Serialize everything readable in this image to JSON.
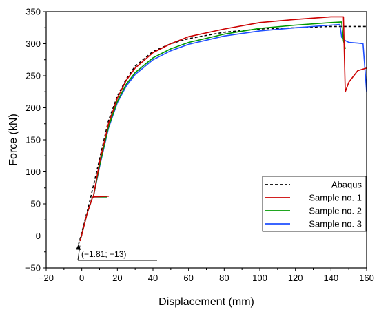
{
  "chart_data": {
    "type": "line",
    "xlabel": "Displacement (mm)",
    "ylabel": "Force (kN)",
    "xlim": [
      -20,
      160
    ],
    "ylim": [
      -50,
      350
    ],
    "xticks": [
      -20,
      0,
      20,
      40,
      60,
      80,
      100,
      120,
      140,
      160
    ],
    "yticks": [
      -50,
      0,
      50,
      100,
      150,
      200,
      250,
      300,
      350
    ],
    "grid": false,
    "legend_position": "bottom-right",
    "zero_line": 0,
    "annotation": {
      "text": "(−1.81; −13)",
      "point": [
        -1.81,
        -13
      ]
    },
    "series": [
      {
        "name": "Abaqus",
        "color": "#000000",
        "dash": "dashed",
        "x": [
          -1.81,
          0,
          5,
          10,
          15,
          20,
          25,
          30,
          40,
          50,
          60,
          80,
          100,
          120,
          140,
          150,
          160
        ],
        "y": [
          -13,
          5,
          60,
          120,
          180,
          218,
          245,
          265,
          288,
          300,
          308,
          318,
          323,
          325,
          327,
          327,
          327
        ]
      },
      {
        "name": "Sample no. 1",
        "color": "#cc0000",
        "dash": "solid",
        "x": [
          -1,
          0,
          3,
          6,
          6.5,
          15,
          6.5,
          10,
          15,
          20,
          25,
          30,
          40,
          50,
          60,
          80,
          100,
          120,
          140,
          147,
          148,
          150,
          155,
          160
        ],
        "y": [
          -8,
          2,
          35,
          60,
          61,
          62,
          61,
          115,
          175,
          215,
          243,
          262,
          286,
          300,
          311,
          323,
          333,
          338,
          342,
          342,
          225,
          240,
          258,
          262
        ]
      },
      {
        "name": "Sample no. 2",
        "color": "#009900",
        "dash": "solid",
        "x": [
          -1,
          0,
          3,
          6,
          6.5,
          14,
          6.5,
          10,
          15,
          20,
          25,
          30,
          40,
          50,
          60,
          80,
          100,
          120,
          140,
          146,
          147,
          148
        ],
        "y": [
          -8,
          2,
          35,
          60,
          61,
          61,
          61,
          110,
          170,
          210,
          237,
          255,
          278,
          292,
          302,
          315,
          324,
          329,
          333,
          334,
          305,
          292
        ]
      },
      {
        "name": "Sample no. 3",
        "color": "#1f4fff",
        "dash": "solid",
        "x": [
          -1,
          0,
          3,
          6,
          6.5,
          14,
          6.5,
          10,
          15,
          20,
          25,
          30,
          40,
          50,
          60,
          80,
          100,
          120,
          140,
          145,
          146,
          148,
          150,
          155,
          158,
          160
        ],
        "y": [
          -8,
          2,
          35,
          60,
          61,
          61,
          61,
          108,
          168,
          208,
          234,
          252,
          275,
          289,
          299,
          312,
          320,
          325,
          329,
          330,
          310,
          305,
          302,
          301,
          300,
          225
        ]
      }
    ]
  }
}
